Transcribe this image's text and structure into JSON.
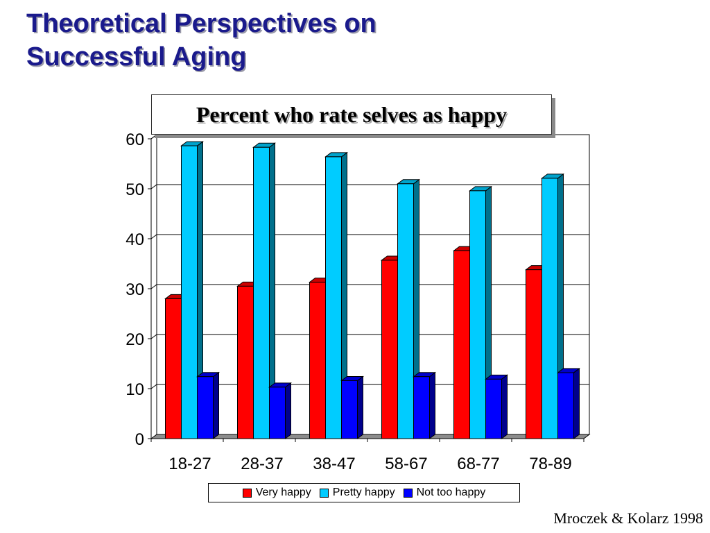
{
  "slide": {
    "title_line1": "Theoretical Perspectives on",
    "title_line2": "Successful Aging",
    "citation": "Mroczek & Kolarz 1998"
  },
  "colors": {
    "title": "#1a1a8c",
    "very_happy": "#ff0000",
    "pretty_happy": "#00ccff",
    "not_too_happy": "#0000ff"
  },
  "chart_data": {
    "type": "bar",
    "title": "Percent who rate selves as happy",
    "xlabel": "",
    "ylabel": "",
    "categories": [
      "18-27",
      "28-37",
      "38-47",
      "58-67",
      "68-77",
      "78-89"
    ],
    "ylim": [
      0,
      60
    ],
    "yticks": [
      0,
      10,
      20,
      30,
      40,
      50,
      60
    ],
    "grid": true,
    "legend_position": "bottom",
    "series": [
      {
        "name": "Very happy",
        "color": "#ff0000",
        "values": [
          28,
          30.5,
          31.3,
          35.7,
          37.6,
          33.8
        ]
      },
      {
        "name": "Pretty happy",
        "color": "#00ccff",
        "values": [
          58.6,
          58.3,
          56.4,
          51,
          49.6,
          52.1
        ]
      },
      {
        "name": "Not too happy",
        "color": "#0000ff",
        "values": [
          12.4,
          10.3,
          11.6,
          12.4,
          11.9,
          13.2
        ]
      }
    ]
  }
}
